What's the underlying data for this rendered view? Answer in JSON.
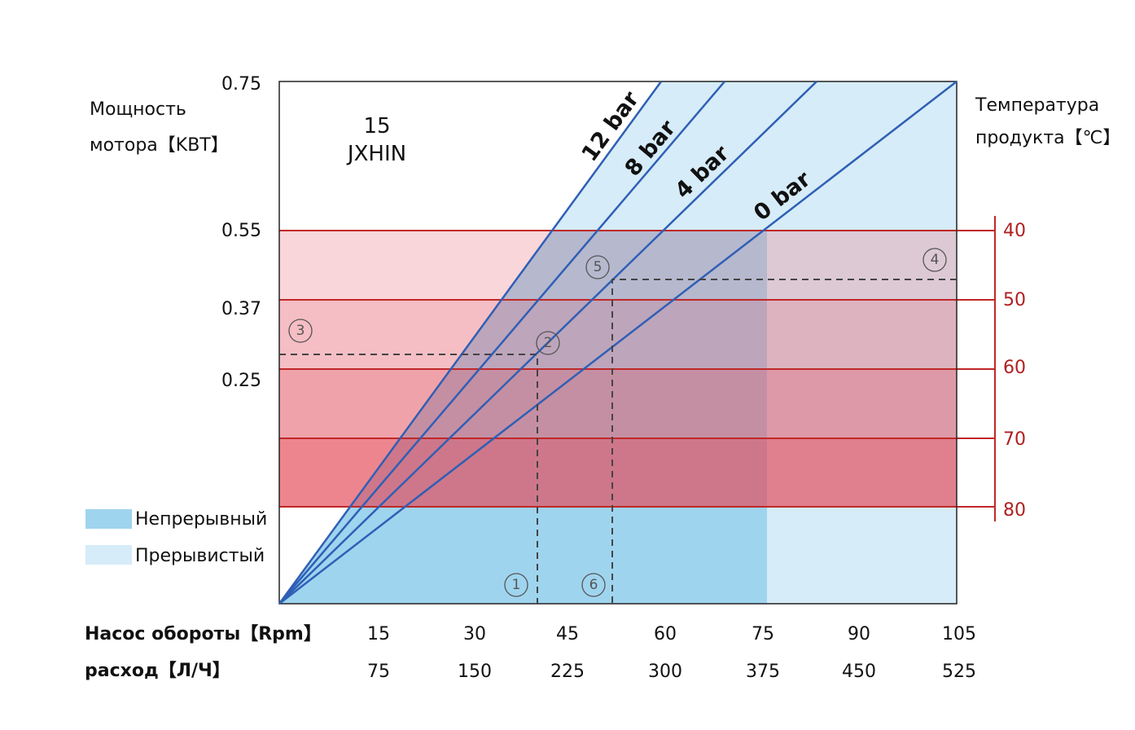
{
  "title": {
    "model_number": "15",
    "model_name": "JXHIN"
  },
  "left_axis": {
    "label_line1": "Мощность",
    "label_line2": "мотора【KBT】",
    "ticks": [
      "0.75",
      "0.55",
      "0.37",
      "0.25"
    ]
  },
  "right_axis": {
    "label_line1": "Температура",
    "label_line2": "продукта【℃】",
    "ticks": [
      "40",
      "50",
      "60",
      "70",
      "80"
    ]
  },
  "pressure_lines": [
    "12 bar",
    "8 bar",
    "4 bar",
    "0 bar"
  ],
  "bottom_axis": {
    "rpm_label": "Насос обороты【Rpm】",
    "rpm_ticks": [
      "15",
      "30",
      "45",
      "60",
      "75",
      "90",
      "105"
    ],
    "flow_label": "расход【Л/Ч】",
    "flow_ticks": [
      "75",
      "150",
      "225",
      "300",
      "375",
      "450",
      "525"
    ]
  },
  "legend": [
    {
      "label": "Непрерывный"
    },
    {
      "label": "Прерывистый"
    }
  ],
  "markers": [
    "1",
    "2",
    "3",
    "4",
    "5",
    "6"
  ]
}
